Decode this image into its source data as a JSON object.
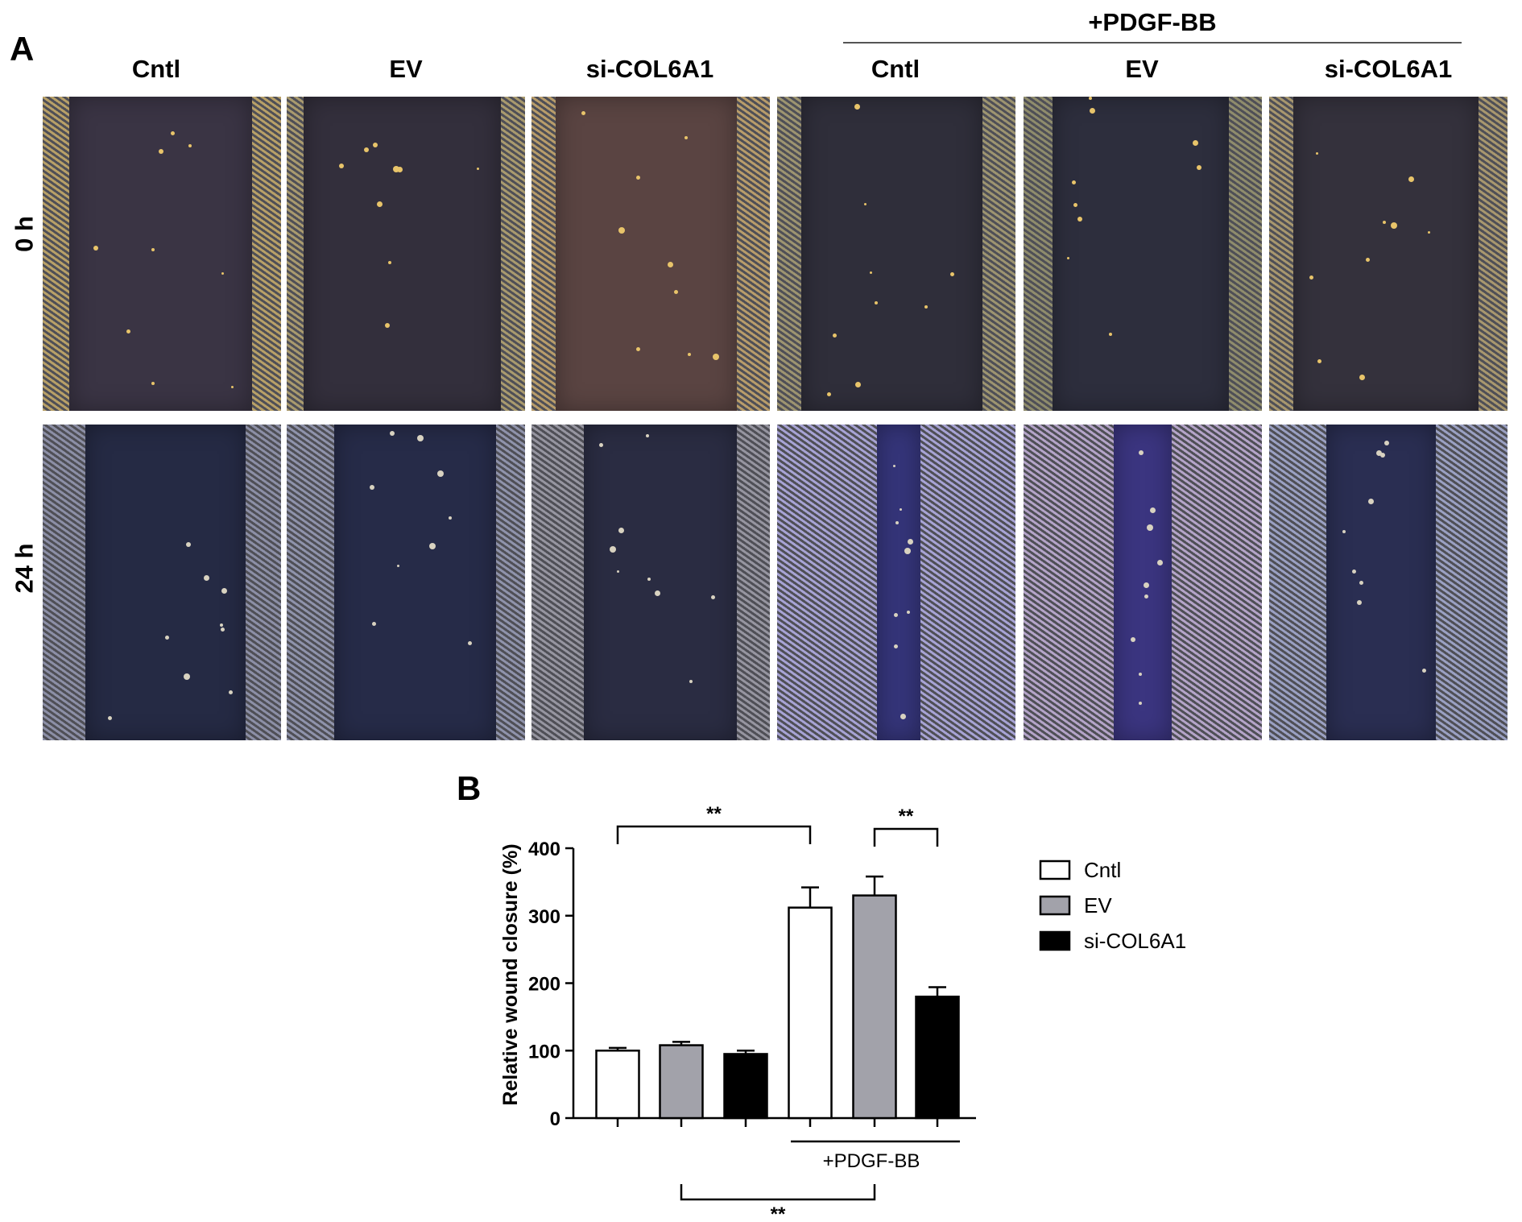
{
  "panel_a": {
    "letter": "A",
    "group_label": "+PDGF-BB",
    "columns": [
      "Cntl",
      "EV",
      "si-COL6A1",
      "Cntl",
      "EV",
      "si-COL6A1"
    ],
    "rows": [
      "0 h",
      "24 h"
    ]
  },
  "panel_b": {
    "letter": "B"
  },
  "chart_data": {
    "type": "bar",
    "title": "",
    "xlabel": "",
    "ylabel": "Relative wound closure (%)",
    "ylim": [
      0,
      400
    ],
    "yticks": [
      0,
      100,
      200,
      300,
      400
    ],
    "bars": [
      {
        "group": "Cntl",
        "treatment": "",
        "value": 100,
        "error": 4,
        "color": "#ffffff"
      },
      {
        "group": "EV",
        "treatment": "",
        "value": 108,
        "error": 5,
        "color": "#a2a2aa"
      },
      {
        "group": "si-COL6A1",
        "treatment": "",
        "value": 95,
        "error": 5,
        "color": "#000000"
      },
      {
        "group": "Cntl",
        "treatment": "+PDGF-BB",
        "value": 312,
        "error": 30,
        "color": "#ffffff"
      },
      {
        "group": "EV",
        "treatment": "+PDGF-BB",
        "value": 330,
        "error": 28,
        "color": "#a2a2aa"
      },
      {
        "group": "si-COL6A1",
        "treatment": "+PDGF-BB",
        "value": 180,
        "error": 14,
        "color": "#000000"
      }
    ],
    "treatment_label": "+PDGF-BB",
    "legend": {
      "placement": "right",
      "entries": [
        {
          "label": "Cntl",
          "color": "#ffffff"
        },
        {
          "label": "EV",
          "color": "#a2a2aa"
        },
        {
          "label": "si-COL6A1",
          "color": "#000000"
        }
      ]
    },
    "significance": [
      {
        "from_bar": 0,
        "to_bar": 3,
        "label": "**",
        "position": "above"
      },
      {
        "from_bar": 4,
        "to_bar": 5,
        "label": "**",
        "position": "above"
      },
      {
        "from_bar": 1,
        "to_bar": 4,
        "label": "**",
        "position": "below"
      }
    ]
  }
}
